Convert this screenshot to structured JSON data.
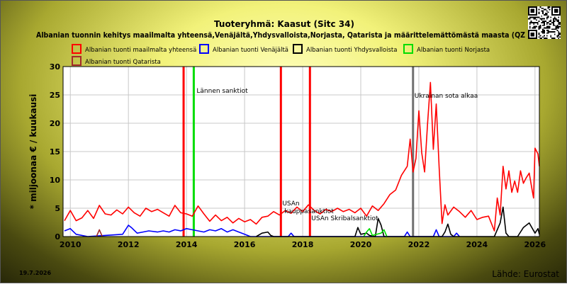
{
  "title": "Tuoteryhmä: Kaasut (Sitc 34)",
  "subtitle": "Albanian tuonnin kehitys maailmalta yhteensä,Venäjältä,Yhdysvalloista,Norjasta, Qatarista ja määrittelemättömästä maasta (QZ",
  "footer": {
    "date": "19.7.2026",
    "source": "Lähde: Eurostat"
  },
  "chart_data": {
    "type": "line",
    "ylabel": "* miljoonaa € / kuukausi",
    "xlabel": "",
    "xlim": [
      2009.75,
      2026.15
    ],
    "ylim": [
      0,
      30
    ],
    "yticks": [
      0,
      5,
      10,
      15,
      20,
      25,
      30
    ],
    "xticks": [
      2010,
      2012,
      2014,
      2016,
      2018,
      2020,
      2022,
      2024,
      2026
    ],
    "grid": true,
    "legend_position": "top",
    "series": [
      {
        "name": "Albanian tuonti maailmalta yhteensä",
        "color": "#ff0000",
        "points": [
          [
            2009.8,
            2.8
          ],
          [
            2010.0,
            4.6
          ],
          [
            2010.2,
            2.8
          ],
          [
            2010.4,
            3.3
          ],
          [
            2010.6,
            4.6
          ],
          [
            2010.8,
            3.2
          ],
          [
            2011.0,
            5.5
          ],
          [
            2011.2,
            4.0
          ],
          [
            2011.4,
            3.8
          ],
          [
            2011.6,
            4.7
          ],
          [
            2011.8,
            4.0
          ],
          [
            2012.0,
            5.2
          ],
          [
            2012.2,
            4.2
          ],
          [
            2012.4,
            3.6
          ],
          [
            2012.6,
            5.0
          ],
          [
            2012.8,
            4.4
          ],
          [
            2013.0,
            4.8
          ],
          [
            2013.2,
            4.2
          ],
          [
            2013.4,
            3.6
          ],
          [
            2013.6,
            5.5
          ],
          [
            2013.8,
            4.2
          ],
          [
            2014.0,
            4.0
          ],
          [
            2014.2,
            3.6
          ],
          [
            2014.4,
            5.4
          ],
          [
            2014.6,
            4.0
          ],
          [
            2014.8,
            2.7
          ],
          [
            2015.0,
            3.8
          ],
          [
            2015.2,
            2.8
          ],
          [
            2015.4,
            3.4
          ],
          [
            2015.6,
            2.4
          ],
          [
            2015.8,
            3.2
          ],
          [
            2016.0,
            2.6
          ],
          [
            2016.2,
            3.0
          ],
          [
            2016.4,
            2.2
          ],
          [
            2016.6,
            3.4
          ],
          [
            2016.8,
            3.6
          ],
          [
            2017.0,
            4.4
          ],
          [
            2017.2,
            3.8
          ],
          [
            2017.4,
            4.6
          ],
          [
            2017.6,
            4.1
          ],
          [
            2017.8,
            5.2
          ],
          [
            2018.0,
            4.4
          ],
          [
            2018.2,
            5.6
          ],
          [
            2018.4,
            4.6
          ],
          [
            2018.6,
            4.0
          ],
          [
            2018.8,
            4.8
          ],
          [
            2019.0,
            4.4
          ],
          [
            2019.2,
            5.0
          ],
          [
            2019.4,
            4.4
          ],
          [
            2019.6,
            4.8
          ],
          [
            2019.8,
            4.2
          ],
          [
            2020.0,
            5.0
          ],
          [
            2020.2,
            3.6
          ],
          [
            2020.4,
            5.4
          ],
          [
            2020.6,
            4.6
          ],
          [
            2020.8,
            5.8
          ],
          [
            2021.0,
            7.4
          ],
          [
            2021.2,
            8.2
          ],
          [
            2021.4,
            10.8
          ],
          [
            2021.6,
            12.4
          ],
          [
            2021.7,
            17.2
          ],
          [
            2021.8,
            11.4
          ],
          [
            2021.9,
            13.8
          ],
          [
            2022.0,
            22.2
          ],
          [
            2022.1,
            14.8
          ],
          [
            2022.2,
            11.4
          ],
          [
            2022.3,
            19.8
          ],
          [
            2022.4,
            27.2
          ],
          [
            2022.5,
            15.4
          ],
          [
            2022.6,
            23.4
          ],
          [
            2022.7,
            12.2
          ],
          [
            2022.8,
            2.3
          ],
          [
            2022.9,
            5.6
          ],
          [
            2023.0,
            3.8
          ],
          [
            2023.2,
            5.2
          ],
          [
            2023.4,
            4.4
          ],
          [
            2023.6,
            3.4
          ],
          [
            2023.8,
            4.6
          ],
          [
            2024.0,
            3.0
          ],
          [
            2024.2,
            3.4
          ],
          [
            2024.4,
            3.6
          ],
          [
            2024.6,
            1.0
          ],
          [
            2024.7,
            6.8
          ],
          [
            2024.8,
            3.8
          ],
          [
            2024.9,
            12.4
          ],
          [
            2025.0,
            8.4
          ],
          [
            2025.1,
            11.6
          ],
          [
            2025.2,
            7.8
          ],
          [
            2025.3,
            9.8
          ],
          [
            2025.4,
            7.8
          ],
          [
            2025.5,
            11.6
          ],
          [
            2025.6,
            9.4
          ],
          [
            2025.7,
            10.4
          ],
          [
            2025.8,
            11.2
          ],
          [
            2025.9,
            8.2
          ],
          [
            2025.95,
            6.8
          ],
          [
            2026.0,
            15.6
          ],
          [
            2026.1,
            14.6
          ],
          [
            2026.15,
            12.4
          ]
        ]
      },
      {
        "name": "Albanian tuonti Venäjältä",
        "color": "#0000ff",
        "points": [
          [
            2009.8,
            1.0
          ],
          [
            2010.0,
            1.4
          ],
          [
            2010.2,
            0.4
          ],
          [
            2010.4,
            0.2
          ],
          [
            2010.6,
            0.0
          ],
          [
            2011.8,
            0.4
          ],
          [
            2011.9,
            1.2
          ],
          [
            2012.0,
            2.0
          ],
          [
            2012.1,
            1.6
          ],
          [
            2012.3,
            0.6
          ],
          [
            2012.5,
            0.8
          ],
          [
            2012.7,
            1.0
          ],
          [
            2013.0,
            0.8
          ],
          [
            2013.2,
            1.0
          ],
          [
            2013.4,
            0.8
          ],
          [
            2013.6,
            1.2
          ],
          [
            2013.8,
            1.0
          ],
          [
            2014.0,
            1.4
          ],
          [
            2014.2,
            1.2
          ],
          [
            2014.4,
            1.0
          ],
          [
            2014.6,
            0.8
          ],
          [
            2014.8,
            1.2
          ],
          [
            2015.0,
            1.0
          ],
          [
            2015.2,
            1.4
          ],
          [
            2015.4,
            0.8
          ],
          [
            2015.6,
            1.2
          ],
          [
            2015.8,
            0.8
          ],
          [
            2016.0,
            0.4
          ],
          [
            2016.2,
            0.0
          ],
          [
            2017.5,
            0.0
          ],
          [
            2017.6,
            0.6
          ],
          [
            2017.7,
            0.0
          ],
          [
            2021.5,
            0.0
          ],
          [
            2021.6,
            0.8
          ],
          [
            2021.7,
            0.0
          ],
          [
            2022.5,
            0.0
          ],
          [
            2022.6,
            1.2
          ],
          [
            2022.7,
            0.0
          ],
          [
            2023.2,
            0.0
          ],
          [
            2023.3,
            0.6
          ],
          [
            2023.4,
            0.0
          ]
        ]
      },
      {
        "name": "Albanian tuonti Yhdysvalloista",
        "color": "#000000",
        "points": [
          [
            2016.4,
            0.0
          ],
          [
            2016.6,
            0.6
          ],
          [
            2016.8,
            0.8
          ],
          [
            2016.9,
            0.2
          ],
          [
            2017.0,
            0.0
          ],
          [
            2019.8,
            0.0
          ],
          [
            2019.9,
            1.6
          ],
          [
            2020.0,
            0.4
          ],
          [
            2020.2,
            0.6
          ],
          [
            2020.3,
            0.2
          ],
          [
            2020.5,
            0.0
          ],
          [
            2020.6,
            3.2
          ],
          [
            2020.7,
            2.0
          ],
          [
            2020.8,
            0.0
          ],
          [
            2022.8,
            0.0
          ],
          [
            2022.9,
            0.8
          ],
          [
            2023.0,
            2.2
          ],
          [
            2023.1,
            0.4
          ],
          [
            2023.2,
            0.0
          ],
          [
            2024.6,
            0.0
          ],
          [
            2024.8,
            2.4
          ],
          [
            2024.9,
            5.2
          ],
          [
            2025.0,
            0.6
          ],
          [
            2025.1,
            0.0
          ],
          [
            2025.4,
            0.0
          ],
          [
            2025.6,
            1.6
          ],
          [
            2025.8,
            2.4
          ],
          [
            2026.0,
            0.6
          ],
          [
            2026.1,
            1.4
          ],
          [
            2026.15,
            0.4
          ]
        ]
      },
      {
        "name": "Albanian tuonti Norjasta",
        "color": "#00dd00",
        "points": [
          [
            2020.1,
            0.0
          ],
          [
            2020.2,
            0.8
          ],
          [
            2020.3,
            1.4
          ],
          [
            2020.4,
            0.2
          ],
          [
            2020.7,
            0.6
          ],
          [
            2020.8,
            1.2
          ],
          [
            2020.9,
            0.0
          ]
        ]
      },
      {
        "name": "Albanian tuonti Qatarista",
        "color": "#a52a2a",
        "points": [
          [
            2010.9,
            0.0
          ],
          [
            2011.0,
            1.2
          ],
          [
            2011.1,
            0.0
          ]
        ]
      }
    ],
    "events": [
      {
        "x": 2013.9,
        "label": "",
        "color": "#ff0000"
      },
      {
        "x": 2014.25,
        "label": "Lännen sanktiot",
        "color": "#00dd00"
      },
      {
        "x": 2017.25,
        "label": "USAn",
        "color": "#ff0000"
      },
      {
        "x": 2018.25,
        "label": "USAn Skribalsanktiot",
        "color": "#ff0000"
      },
      {
        "x": 2021.8,
        "label": "Ukrainan sota alkaa",
        "color": "#707070"
      }
    ],
    "annotations": [
      {
        "x": 2017.3,
        "y": 4.5,
        "text": "kauppasanktiot"
      }
    ]
  }
}
